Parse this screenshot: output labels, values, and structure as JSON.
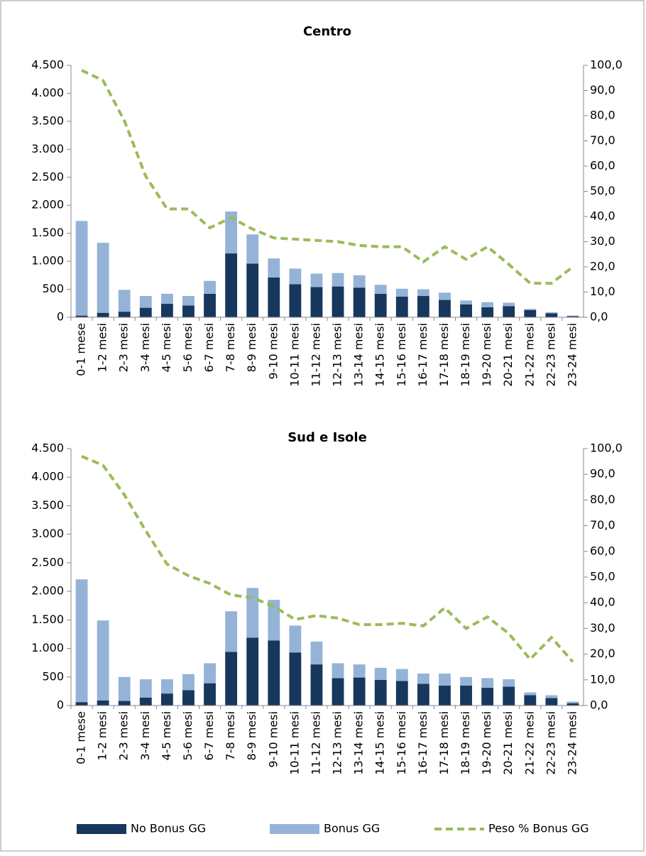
{
  "chart_data": [
    {
      "type": "bar",
      "title": "Centro",
      "categories": [
        "0-1 mese",
        "1-2 mesi",
        "2-3 mesi",
        "3-4 mesi",
        "4-5 mesi",
        "5-6 mesi",
        "6-7 mesi",
        "7-8 mesi",
        "8-9 mesi",
        "9-10 mesi",
        "10-11 mesi",
        "11-12 mesi",
        "12-13 mesi",
        "13-14 mesi",
        "14-15 mesi",
        "15-16 mesi",
        "16-17 mesi",
        "17-18 mesi",
        "18-19 mesi",
        "19-20 mesi",
        "20-21 mesi",
        "21-22 mesi",
        "22-23 mesi",
        "23-24 mesi"
      ],
      "series": [
        {
          "color": "#17375e",
          "values": [
            30,
            80,
            100,
            170,
            240,
            210,
            420,
            1140,
            960,
            710,
            590,
            540,
            550,
            530,
            420,
            370,
            380,
            310,
            230,
            180,
            200,
            130,
            70,
            20
          ]
        },
        {
          "color": "#95b3d7",
          "values": [
            1690,
            1250,
            390,
            210,
            180,
            170,
            230,
            750,
            520,
            340,
            280,
            240,
            240,
            220,
            160,
            140,
            120,
            130,
            70,
            90,
            60,
            20,
            20,
            10
          ]
        },
        {
          "color": "#9bbb59",
          "axis": "y2",
          "values": [
            98,
            94,
            78,
            56,
            43,
            43,
            35.5,
            39.5,
            35,
            31.5,
            31,
            30.5,
            30,
            28.5,
            28,
            28,
            22,
            28,
            23,
            28,
            21,
            13.5,
            13.5,
            20
          ]
        }
      ],
      "ylim": [
        0,
        4500
      ],
      "yticks": [
        0,
        {
          "value": 500,
          "label": "500"
        },
        {
          "value": 1000,
          "label": "1.000"
        },
        {
          "value": 1500,
          "label": "1.500"
        },
        {
          "value": 2000,
          "label": "2.000"
        },
        {
          "value": 2500,
          "label": "2.500"
        },
        {
          "value": 3000,
          "label": "3.000"
        },
        {
          "value": 3500,
          "label": "3.500"
        },
        {
          "value": 4000,
          "label": "4.000"
        },
        {
          "value": 4500,
          "label": "4.500"
        }
      ],
      "y2lim": [
        0,
        100
      ],
      "y2ticks": [
        {
          "value": 0,
          "label": "0,0"
        },
        {
          "value": 10,
          "label": "10,0"
        },
        {
          "value": 20,
          "label": "20,0"
        },
        {
          "value": 30,
          "label": "30,0"
        },
        {
          "value": 40,
          "label": "40,0"
        },
        {
          "value": 50,
          "label": "50,0"
        },
        {
          "value": 60,
          "label": "60,0"
        },
        {
          "value": 70,
          "label": "70,0"
        },
        {
          "value": 80,
          "label": "80,0"
        },
        {
          "value": 90,
          "label": "90,0"
        },
        {
          "value": 100,
          "label": "100,0"
        }
      ],
      "stacked": true
    },
    {
      "type": "bar",
      "title": "Sud e Isole",
      "categories": [
        "0-1 mese",
        "1-2 mesi",
        "2-3 mesi",
        "3-4 mesi",
        "4-5 mesi",
        "5-6 mesi",
        "6-7 mesi",
        "7-8 mesi",
        "8-9 mesi",
        "9-10 mesi",
        "10-11 mesi",
        "11-12 mesi",
        "12-13 mesi",
        "13-14 mesi",
        "14-15 mesi",
        "15-16 mesi",
        "16-17 mesi",
        "17-18 mesi",
        "18-19 mesi",
        "19-20 mesi",
        "20-21 mesi",
        "21-22 mesi",
        "22-23 mesi",
        "23-24 mesi"
      ],
      "series": [
        {
          "name": "No Bonus GG",
          "color": "#17375e",
          "values": [
            60,
            90,
            80,
            140,
            210,
            270,
            390,
            940,
            1190,
            1140,
            930,
            720,
            480,
            490,
            450,
            430,
            380,
            350,
            350,
            310,
            330,
            180,
            130,
            40
          ]
        },
        {
          "name": "Bonus GG",
          "color": "#95b3d7",
          "values": [
            2150,
            1400,
            420,
            320,
            250,
            280,
            350,
            710,
            870,
            710,
            470,
            400,
            260,
            230,
            210,
            210,
            180,
            210,
            150,
            170,
            130,
            50,
            50,
            30
          ]
        },
        {
          "name": "Peso % Bonus GG",
          "color": "#9bbb59",
          "axis": "y2",
          "values": [
            97,
            93.5,
            82,
            68,
            55,
            50.5,
            47.5,
            43,
            42,
            38.5,
            33.5,
            35,
            34,
            31.5,
            31.5,
            32,
            31,
            38,
            30,
            34.5,
            28,
            18,
            26.5,
            17
          ]
        }
      ],
      "ylim": [
        0,
        4500
      ],
      "yticks": [
        0,
        {
          "value": 500,
          "label": "500"
        },
        {
          "value": 1000,
          "label": "1.000"
        },
        {
          "value": 1500,
          "label": "1.500"
        },
        {
          "value": 2000,
          "label": "2.000"
        },
        {
          "value": 2500,
          "label": "2.500"
        },
        {
          "value": 3000,
          "label": "3.000"
        },
        {
          "value": 3500,
          "label": "3.500"
        },
        {
          "value": 4000,
          "label": "4.000"
        },
        {
          "value": 4500,
          "label": "4.500"
        }
      ],
      "y2lim": [
        0,
        100
      ],
      "y2ticks": [
        {
          "value": 0,
          "label": "0,0"
        },
        {
          "value": 10,
          "label": "10,0"
        },
        {
          "value": 20,
          "label": "20,0"
        },
        {
          "value": 30,
          "label": "30,0"
        },
        {
          "value": 40,
          "label": "40,0"
        },
        {
          "value": 50,
          "label": "50,0"
        },
        {
          "value": 60,
          "label": "60,0"
        },
        {
          "value": 70,
          "label": "70,0"
        },
        {
          "value": 80,
          "label": "80,0"
        },
        {
          "value": 90,
          "label": "90,0"
        },
        {
          "value": 100,
          "label": "100,0"
        }
      ],
      "stacked": true
    }
  ]
}
